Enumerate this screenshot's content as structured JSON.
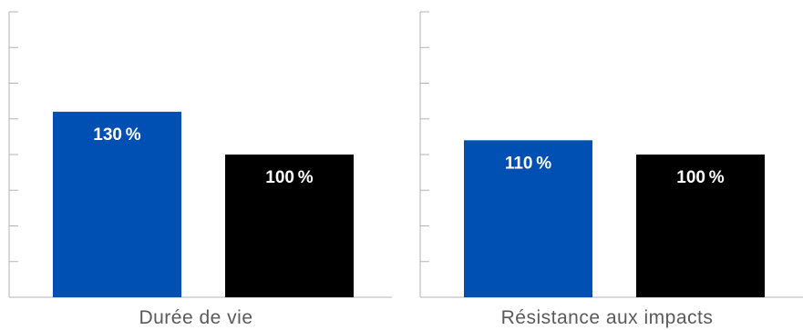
{
  "chart_data": [
    {
      "type": "bar",
      "title": "",
      "xlabel": "Durée de vie",
      "ylabel": "",
      "ylim": [
        0,
        200
      ],
      "grid": false,
      "categories": [
        "",
        ""
      ],
      "values": [
        130,
        100
      ],
      "value_labels": [
        "130 %",
        "100 %"
      ],
      "colors": [
        "#0050b3",
        "#000000"
      ]
    },
    {
      "type": "bar",
      "title": "",
      "xlabel": "Résistance aux impacts",
      "ylabel": "",
      "ylim": [
        0,
        200
      ],
      "grid": false,
      "categories": [
        "",
        ""
      ],
      "values": [
        110,
        100
      ],
      "value_labels": [
        "110 %",
        "100 %"
      ],
      "colors": [
        "#0050b3",
        "#000000"
      ]
    }
  ]
}
